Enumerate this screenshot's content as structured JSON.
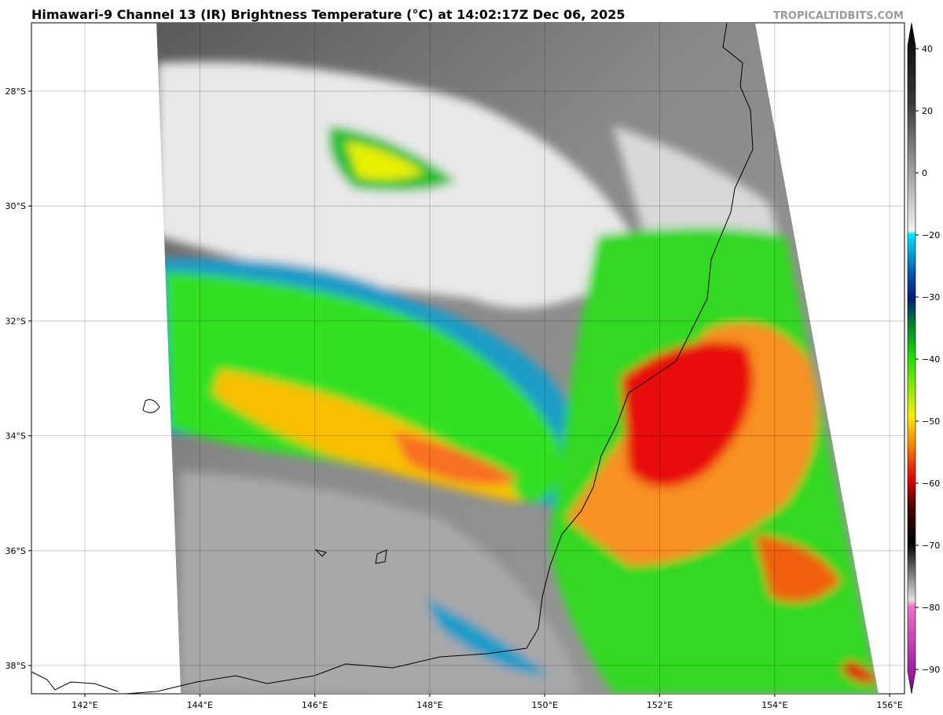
{
  "header": {
    "title": "Himawari-9 Channel 13 (IR) Brightness Temperature (°C) at 14:02:17Z Dec 06, 2025",
    "credit": "TROPICALTIDBITS.COM"
  },
  "map": {
    "lat_ticks": [
      "28°S",
      "30°S",
      "32°S",
      "34°S",
      "36°S",
      "38°S"
    ],
    "lon_ticks": [
      "142°E",
      "144°E",
      "146°E",
      "148°E",
      "150°E",
      "152°E",
      "154°E",
      "156°E"
    ]
  },
  "colorbar": {
    "ticks": [
      "40",
      "20",
      "0",
      "−20",
      "−30",
      "−40",
      "−50",
      "−60",
      "−70",
      "−80",
      "−90"
    ]
  }
}
